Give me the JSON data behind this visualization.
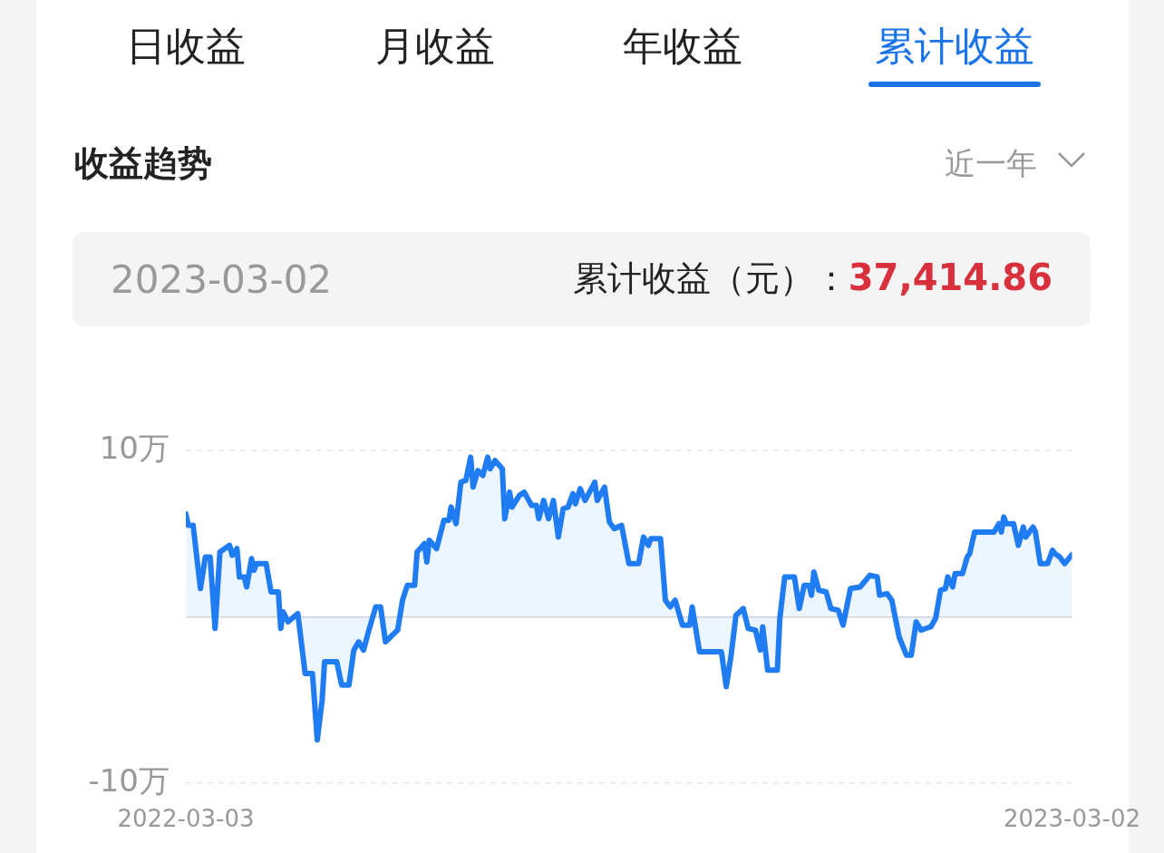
{
  "chart_data": {
    "type": "area",
    "title": "收益趋势",
    "annotations": [
      "日收益",
      "月收益",
      "年收益",
      "累计收益",
      "近一年",
      "2023-03-02",
      "累计收益（元）：",
      "37,414.86"
    ],
    "x": [
      "2022-03-03",
      "2022-03-04",
      "2022-03-06",
      "2022-03-09",
      "2022-03-11",
      "2022-03-13",
      "2022-03-15",
      "2022-03-17",
      "2022-03-21",
      "2022-03-22",
      "2022-03-24",
      "2022-03-25",
      "2022-03-27",
      "2022-03-28",
      "2022-03-30",
      "2022-03-31",
      "2022-04-01",
      "2022-04-05",
      "2022-04-07",
      "2022-04-10",
      "2022-04-11",
      "2022-04-12",
      "2022-04-14",
      "2022-04-18",
      "2022-04-21",
      "2022-04-24",
      "2022-04-26",
      "2022-04-28",
      "2022-04-29",
      "2022-05-04",
      "2022-05-06",
      "2022-05-09",
      "2022-05-11",
      "2022-05-13",
      "2022-05-15",
      "2022-05-17",
      "2022-05-20",
      "2022-05-22",
      "2022-05-24",
      "2022-05-29",
      "2022-05-31",
      "2022-06-02",
      "2022-06-05",
      "2022-06-06",
      "2022-06-09",
      "2022-06-10",
      "2022-06-11",
      "2022-06-14",
      "2022-06-17",
      "2022-06-19",
      "2022-06-20",
      "2022-06-22",
      "2022-06-24",
      "2022-06-26",
      "2022-06-28",
      "2022-06-29",
      "2022-07-01",
      "2022-07-03",
      "2022-07-05",
      "2022-07-06",
      "2022-07-08",
      "2022-07-11",
      "2022-07-12",
      "2022-07-14",
      "2022-07-15",
      "2022-07-18",
      "2022-07-20",
      "2022-07-23",
      "2022-07-25",
      "2022-07-26",
      "2022-07-28",
      "2022-07-30",
      "2022-08-01",
      "2022-08-03",
      "2022-08-05",
      "2022-08-07",
      "2022-08-09",
      "2022-08-10",
      "2022-08-12",
      "2022-08-14",
      "2022-08-18",
      "2022-08-19",
      "2022-08-22",
      "2022-08-24",
      "2022-08-26",
      "2022-08-29",
      "2022-09-01",
      "2022-09-05",
      "2022-09-07",
      "2022-09-09",
      "2022-09-10",
      "2022-09-14",
      "2022-09-16",
      "2022-09-18",
      "2022-09-20",
      "2022-09-23",
      "2022-09-26",
      "2022-09-27",
      "2022-09-29",
      "2022-09-30",
      "2022-10-09",
      "2022-10-11",
      "2022-10-13",
      "2022-10-15",
      "2022-10-18",
      "2022-10-20",
      "2022-10-23",
      "2022-10-25",
      "2022-10-26",
      "2022-10-28",
      "2022-11-01",
      "2022-11-02",
      "2022-11-04",
      "2022-11-08",
      "2022-11-10",
      "2022-11-12",
      "2022-11-14",
      "2022-11-15",
      "2022-11-16",
      "2022-11-18",
      "2022-11-21",
      "2022-11-23",
      "2022-11-26",
      "2022-11-28",
      "2022-12-01",
      "2022-12-05",
      "2022-12-09",
      "2022-12-12",
      "2022-12-13",
      "2022-12-16",
      "2022-12-18",
      "2022-12-21",
      "2022-12-24",
      "2022-12-26",
      "2022-12-28",
      "2022-12-30",
      "2023-01-03",
      "2023-01-05",
      "2023-01-07",
      "2023-01-09",
      "2023-01-10",
      "2023-01-12",
      "2023-01-13",
      "2023-01-16",
      "2023-01-18",
      "2023-01-19",
      "2023-01-21",
      "2023-01-29",
      "2023-01-31",
      "2023-02-01",
      "2023-02-02",
      "2023-02-03",
      "2023-02-06",
      "2023-02-08",
      "2023-02-10",
      "2023-02-11",
      "2023-02-14",
      "2023-02-15",
      "2023-02-17",
      "2023-02-20",
      "2023-02-22",
      "2023-02-23",
      "2023-02-25",
      "2023-02-27",
      "2023-03-02"
    ],
    "series": [
      {
        "color": "#1f7cf2",
        "values": [
          6.2,
          5.5,
          5.5,
          1.7,
          3.6,
          3.6,
          -0.7,
          3.9,
          4.3,
          3.7,
          4.1,
          2.4,
          2.4,
          1.8,
          3.5,
          2.8,
          3.2,
          3.2,
          1.5,
          1.5,
          -0.7,
          0.3,
          -0.3,
          0.2,
          -3.4,
          -3.4,
          -7.4,
          -5.0,
          -2.7,
          -2.7,
          -4.1,
          -4.1,
          -2.0,
          -1.5,
          -2.0,
          -0.9,
          0.6,
          0.6,
          -1.5,
          -0.8,
          1.0,
          1.9,
          1.9,
          3.9,
          4.4,
          3.3,
          4.6,
          4.1,
          5.8,
          5.8,
          6.6,
          5.6,
          8.1,
          8.2,
          9.6,
          7.8,
          8.8,
          8.5,
          9.6,
          8.9,
          9.4,
          8.9,
          5.9,
          7.5,
          6.6,
          7.3,
          7.5,
          6.7,
          6.7,
          5.9,
          7.0,
          5.9,
          7.0,
          4.8,
          6.5,
          6.6,
          7.4,
          6.8,
          7.7,
          7.0,
          8.1,
          7.0,
          7.8,
          5.7,
          5.3,
          5.5,
          3.2,
          3.2,
          4.8,
          4.3,
          4.7,
          4.7,
          1.0,
          0.6,
          1.0,
          -0.5,
          -0.5,
          0.6,
          -1.2,
          -2.1,
          -2.1,
          -4.2,
          -2.3,
          0.1,
          0.5,
          -0.7,
          -0.8,
          -2.0,
          -0.6,
          -3.2,
          -3.2,
          -0.1,
          2.4,
          2.4,
          0.5,
          1.9,
          1.9,
          1.3,
          2.7,
          1.6,
          1.5,
          0.5,
          0.4,
          -0.5,
          1.7,
          1.8,
          2.5,
          2.4,
          1.3,
          1.4,
          1.0,
          -1.2,
          -2.3,
          -2.3,
          -0.3,
          -0.8,
          -0.6,
          -0.1,
          1.6,
          1.7,
          2.4,
          1.8,
          2.6,
          2.6,
          3.6,
          3.8,
          5.1,
          5.1,
          5.6,
          5.1,
          6.0,
          5.6,
          5.6,
          4.3,
          5.4,
          4.8,
          5.4,
          5.1,
          3.2,
          3.2,
          4.0,
          3.8,
          3.6,
          3.2,
          3.74
        ]
      }
    ],
    "xlim": [
      "2022-03-03",
      "2023-03-02"
    ],
    "xticks": [
      "2022-03-03",
      "2023-03-02"
    ],
    "ylim": [
      -10,
      10
    ],
    "yticks": [
      {
        "value": -10,
        "label": "-10万"
      },
      {
        "value": 0,
        "label": null
      },
      {
        "value": 10,
        "label": "10万"
      }
    ],
    "grid": "y",
    "legend": false
  }
}
